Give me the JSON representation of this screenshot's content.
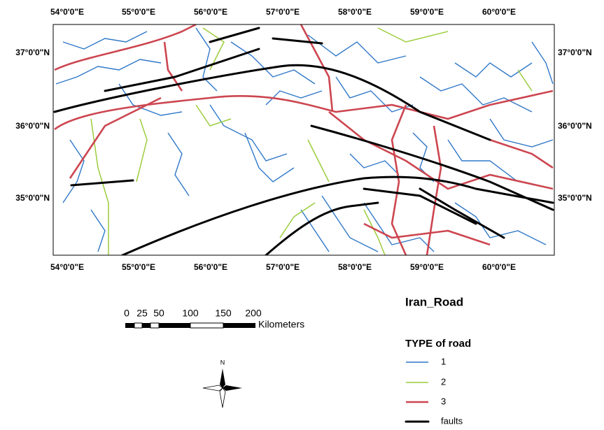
{
  "map": {
    "top_labels": [
      "54°0'0\"E",
      "55°0'0\"E",
      "56°0'0\"E",
      "57°0'0\"E",
      "58°0'0\"E",
      "59°0'0\"E",
      "60°0'0\"E"
    ],
    "bottom_labels": [
      "54°0'0\"E",
      "55°0'0\"E",
      "56°0'0\"E",
      "57°0'0\"E",
      "58°0'0\"E",
      "59°0'0\"E",
      "60°0'0\"E"
    ],
    "left_labels": [
      "37°0'0\"N",
      "36°0'0\"N",
      "35°0'0\"N"
    ],
    "right_labels": [
      "37°0'0\"N",
      "36°0'0\"N",
      "35°0'0\"N"
    ]
  },
  "scale_bar": {
    "labels": [
      "0",
      "25",
      "50",
      "100",
      "150",
      "200"
    ],
    "unit": "Kilometers"
  },
  "north_arrow": "N",
  "legend": {
    "title": "Iran_Road",
    "subtitle": "TYPE of road",
    "items": [
      "1",
      "2",
      "3",
      "faults"
    ]
  }
}
